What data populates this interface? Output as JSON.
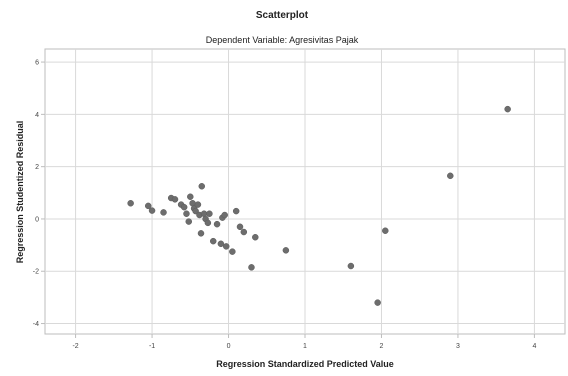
{
  "chart_data": {
    "type": "scatter",
    "title": "Scatterplot",
    "subtitle": "Dependent Variable: Agresivitas Pajak",
    "xlabel": "Regression Standardized Predicted Value",
    "ylabel": "Regression Studentized Residual",
    "xlim": [
      -2.4,
      4.4
    ],
    "ylim": [
      -4.4,
      6.5
    ],
    "xticks": [
      -2,
      -1,
      0,
      1,
      2,
      3,
      4
    ],
    "yticks": [
      -4,
      -2,
      0,
      2,
      4,
      6
    ],
    "xtick_labels": [
      "-2",
      "-1",
      "0",
      "1",
      "2",
      "3",
      "4"
    ],
    "ytick_labels": [
      "-4",
      "-2",
      "0",
      "2",
      "4",
      "6"
    ],
    "grid": true,
    "marker_color": "#6d6d6d",
    "grid_color": "#d9d9d9",
    "points": [
      {
        "x": -1.28,
        "y": 0.6
      },
      {
        "x": -1.05,
        "y": 0.5
      },
      {
        "x": -1.0,
        "y": 0.32
      },
      {
        "x": -0.85,
        "y": 0.25
      },
      {
        "x": -0.75,
        "y": 0.8
      },
      {
        "x": -0.7,
        "y": 0.75
      },
      {
        "x": -0.62,
        "y": 0.55
      },
      {
        "x": -0.58,
        "y": 0.45
      },
      {
        "x": -0.55,
        "y": 0.2
      },
      {
        "x": -0.52,
        "y": -0.1
      },
      {
        "x": -0.5,
        "y": 0.85
      },
      {
        "x": -0.47,
        "y": 0.6
      },
      {
        "x": -0.45,
        "y": 0.4
      },
      {
        "x": -0.43,
        "y": 0.3
      },
      {
        "x": -0.4,
        "y": 0.55
      },
      {
        "x": -0.38,
        "y": 0.15
      },
      {
        "x": -0.36,
        "y": -0.55
      },
      {
        "x": -0.35,
        "y": 1.25
      },
      {
        "x": -0.32,
        "y": 0.2
      },
      {
        "x": -0.3,
        "y": 0.0
      },
      {
        "x": -0.27,
        "y": -0.15
      },
      {
        "x": -0.25,
        "y": 0.2
      },
      {
        "x": -0.2,
        "y": -0.85
      },
      {
        "x": -0.15,
        "y": -0.2
      },
      {
        "x": -0.1,
        "y": -0.95
      },
      {
        "x": -0.08,
        "y": 0.05
      },
      {
        "x": -0.05,
        "y": 0.15
      },
      {
        "x": -0.03,
        "y": -1.05
      },
      {
        "x": 0.05,
        "y": -1.25
      },
      {
        "x": 0.1,
        "y": 0.3
      },
      {
        "x": 0.15,
        "y": -0.3
      },
      {
        "x": 0.2,
        "y": -0.5
      },
      {
        "x": 0.3,
        "y": -1.85
      },
      {
        "x": 0.35,
        "y": -0.7
      },
      {
        "x": 0.75,
        "y": -1.2
      },
      {
        "x": 1.6,
        "y": -1.8
      },
      {
        "x": 1.95,
        "y": -3.2
      },
      {
        "x": 2.05,
        "y": -0.45
      },
      {
        "x": 2.9,
        "y": 1.65
      },
      {
        "x": 3.65,
        "y": 4.2
      }
    ]
  }
}
